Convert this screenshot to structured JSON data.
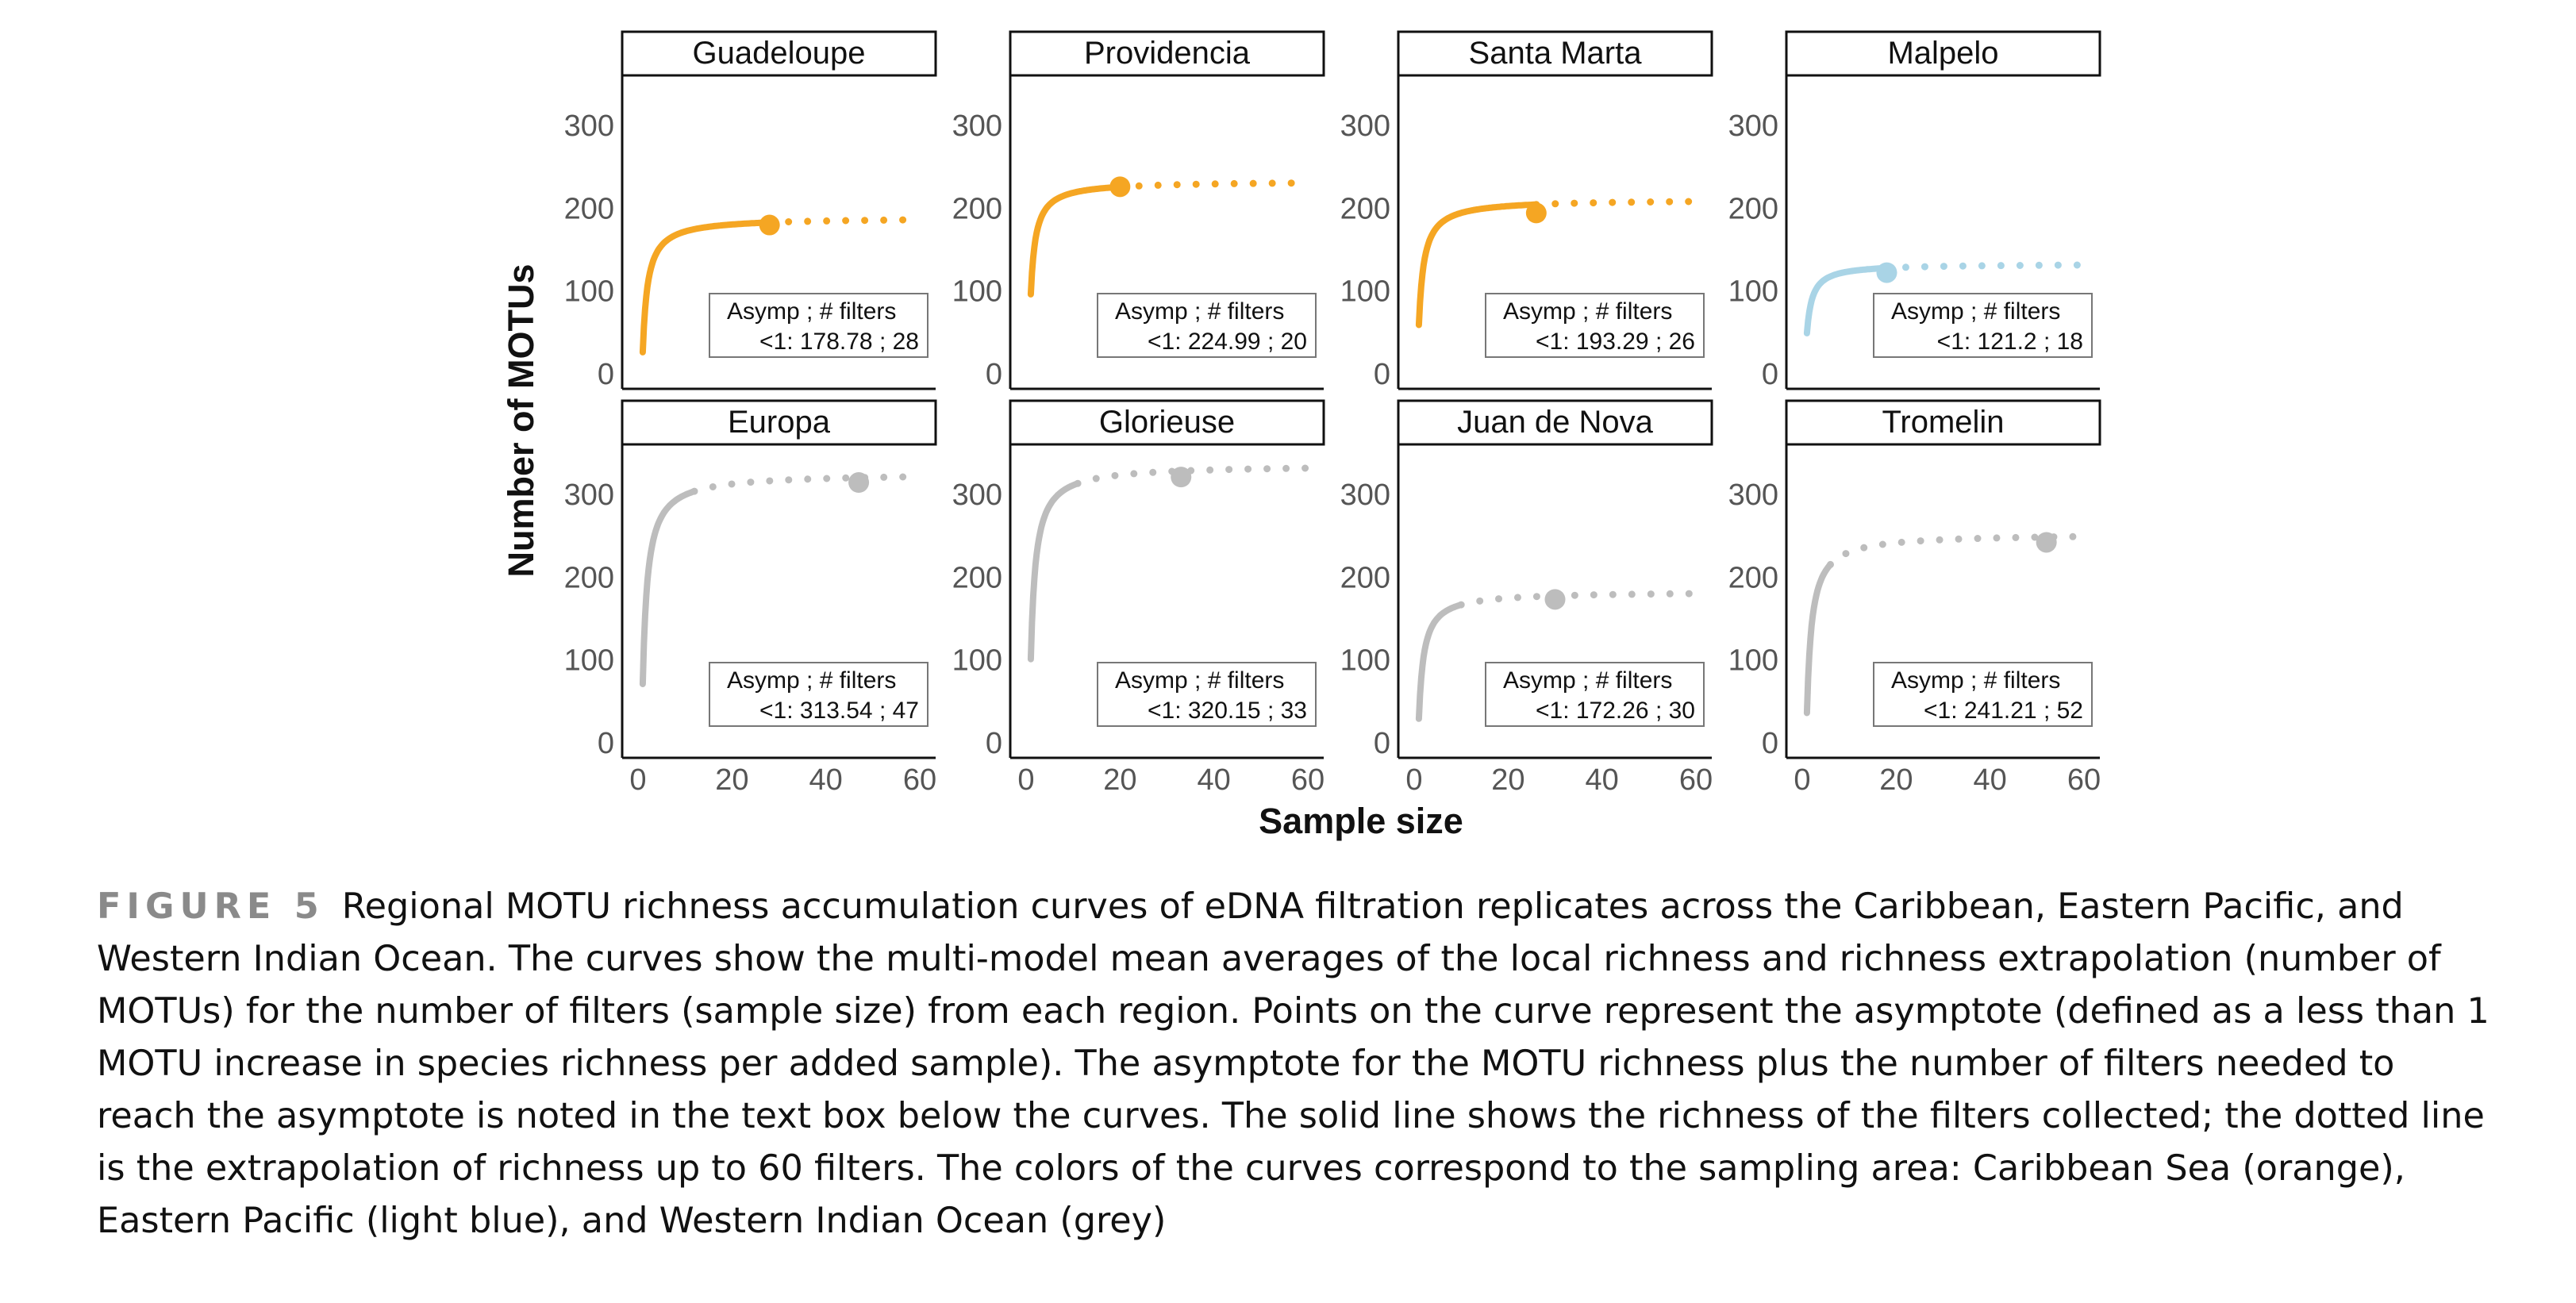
{
  "figure": {
    "label": "FIGURE 5",
    "caption": "Regional MOTU richness accumulation curves of eDNA filtration replicates across the Caribbean, Eastern Pacific, and Western Indian Ocean. The curves show the multi-model mean averages of the local richness and richness extrapolation (number of MOTUs) for the number of filters (sample size) from each region. Points on the curve represent the asymptote (defined as a less than 1 MOTU increase in species richness per added sample). The asymptote for the MOTU richness plus the number of filters needed to reach the asymptote is noted in the text box below the curves. The solid line shows the richness of the filters collected; the dotted line is the extrapolation of richness up to 60 filters. The colors of the curves correspond to the sampling area: Caribbean Sea (orange), Eastern Pacific (light blue), and Western Indian Ocean (grey)"
  },
  "chart_data": {
    "type": "line",
    "xlabel": "Sample size",
    "ylabel": "Number of MOTUs",
    "xlim": [
      0,
      60
    ],
    "ylim": [
      0,
      350
    ],
    "xticks": [
      0,
      20,
      40,
      60
    ],
    "yticks": [
      0,
      100,
      200,
      300
    ],
    "grid": false,
    "box_header": "Asymp ;  # filters",
    "colors": {
      "Caribbean Sea": "#f5a623",
      "Eastern Pacific": "#a9d4e6",
      "Western Indian Ocean": "#bdbdbd"
    },
    "panels": [
      {
        "name": "Guadeloupe",
        "region": "Caribbean Sea",
        "color": "#f5a623",
        "asymptote": 178.78,
        "filters": 28,
        "box_text": "<1:  178.78 ;  28",
        "solid_until": 28,
        "y_start": 25,
        "y_end": 188
      },
      {
        "name": "Providencia",
        "region": "Caribbean Sea",
        "color": "#f5a623",
        "asymptote": 224.99,
        "filters": 20,
        "box_text": "<1:  224.99 ;  20",
        "solid_until": 20,
        "y_start": 95,
        "y_end": 232
      },
      {
        "name": "Santa Marta",
        "region": "Caribbean Sea",
        "color": "#f5a623",
        "asymptote": 193.29,
        "filters": 26,
        "box_text": "<1:  193.29 ;  26",
        "solid_until": 26,
        "y_start": 58,
        "y_end": 210
      },
      {
        "name": "Malpelo",
        "region": "Eastern Pacific",
        "color": "#a9d4e6",
        "asymptote": 121.2,
        "filters": 18,
        "box_text": "<1:  121.2 ;  18",
        "solid_until": 18,
        "y_start": 48,
        "y_end": 132
      },
      {
        "name": "Europa",
        "region": "Western Indian Ocean",
        "color": "#bdbdbd",
        "asymptote": 313.54,
        "filters": 47,
        "box_text": "<1:  313.54 ;  47",
        "solid_until": 12,
        "y_start": 70,
        "y_end": 325
      },
      {
        "name": "Glorieuse",
        "region": "Western Indian Ocean",
        "color": "#bdbdbd",
        "asymptote": 320.15,
        "filters": 33,
        "box_text": "<1:  320.15 ;  33",
        "solid_until": 11,
        "y_start": 100,
        "y_end": 335
      },
      {
        "name": "Juan de Nova",
        "region": "Western Indian Ocean",
        "color": "#bdbdbd",
        "asymptote": 172.26,
        "filters": 30,
        "box_text": "<1:  172.26 ;  30",
        "solid_until": 10,
        "y_start": 28,
        "y_end": 182
      },
      {
        "name": "Tromelin",
        "region": "Western Indian Ocean",
        "color": "#bdbdbd",
        "asymptote": 241.21,
        "filters": 52,
        "box_text": "<1:  241.21 ;  52",
        "solid_until": 6,
        "y_start": 35,
        "y_end": 252
      }
    ]
  }
}
